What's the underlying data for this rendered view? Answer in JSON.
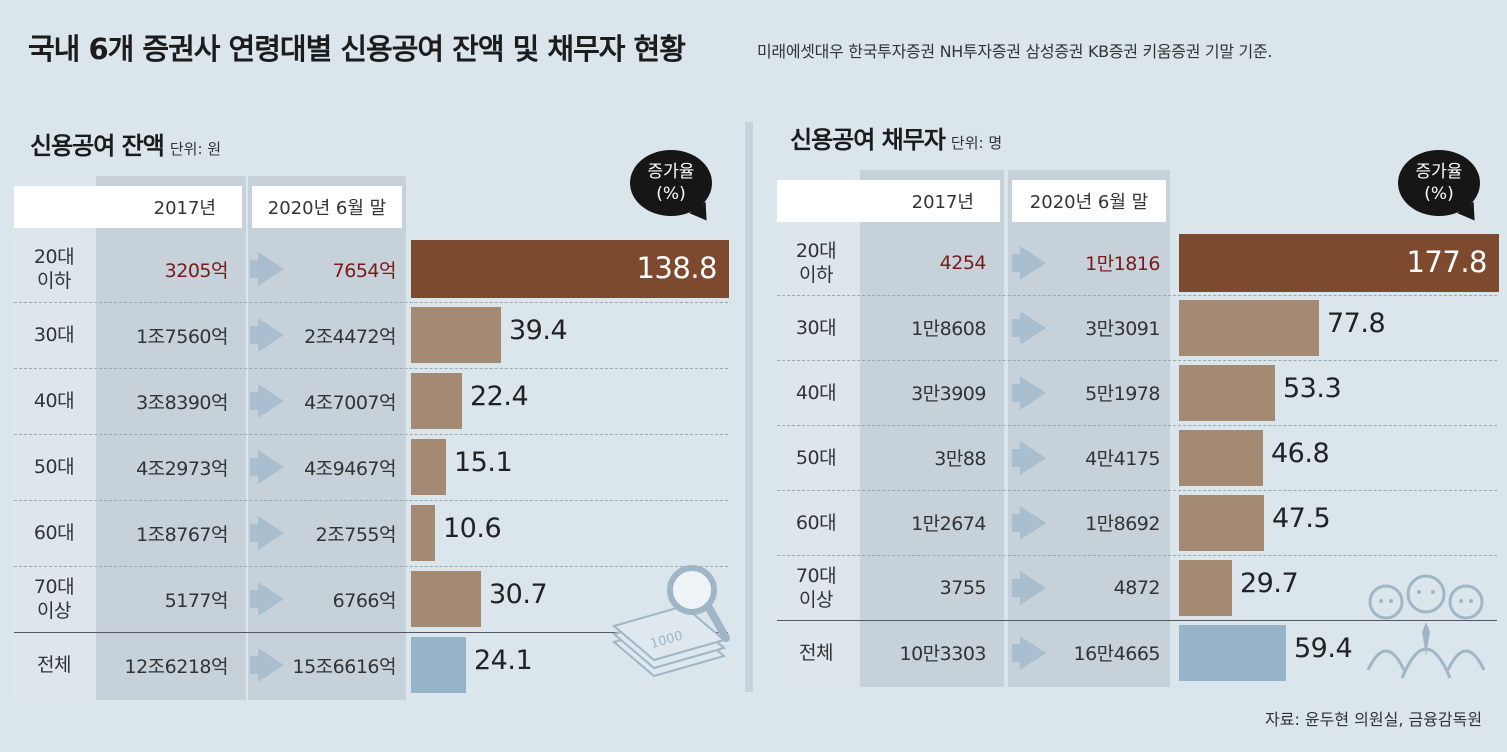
{
  "title": "국내 6개 증권사 연령대별 신용공여 잔액 및 채무자 현황",
  "subtitle": "미래에셋대우 한국투자증권 NH투자증권 삼성증권 KB증권 키움증권 기말 기준.",
  "source": "자료: 윤두현 의원실, 금융감독원",
  "colors": {
    "highlight": "#7e4a2f",
    "normal": "#a48a73",
    "total": "#97b3c8",
    "first_text": "#7a1a1a"
  },
  "chart_data": [
    {
      "type": "bar",
      "title": "신용공여 잔액",
      "unit": "단위: 원",
      "col_2017": "2017년",
      "col_2020": "2020년 6월 말",
      "rate_label_1": "증가율",
      "rate_label_2": "(%)",
      "categories": [
        "20대\n이하",
        "30대",
        "40대",
        "50대",
        "60대",
        "70대\n이상",
        "전체"
      ],
      "values_2017": [
        "3205억",
        "1조7560억",
        "3조8390억",
        "4조2973억",
        "1조8767억",
        "5177억",
        "12조6218억"
      ],
      "values_2020": [
        "7654억",
        "2조4472억",
        "4조7007억",
        "4조9467억",
        "2조755억",
        "6766억",
        "15조6616억"
      ],
      "growth_rate": [
        138.8,
        39.4,
        22.4,
        15.1,
        10.6,
        30.7,
        24.1
      ],
      "growth_rate_labels": [
        "138.8",
        "39.4",
        "22.4",
        "15.1",
        "10.6",
        "30.7",
        "24.1"
      ]
    },
    {
      "type": "bar",
      "title": "신용공여 채무자",
      "unit": "단위: 명",
      "col_2017": "2017년",
      "col_2020": "2020년 6월 말",
      "rate_label_1": "증가율",
      "rate_label_2": "(%)",
      "categories": [
        "20대\n이하",
        "30대",
        "40대",
        "50대",
        "60대",
        "70대\n이상",
        "전체"
      ],
      "values_2017": [
        "4254",
        "1만8608",
        "3만3909",
        "3만88",
        "1만2674",
        "3755",
        "10만3303"
      ],
      "values_2020": [
        "1만1816",
        "3만3091",
        "5만1978",
        "4만4175",
        "1만8692",
        "4872",
        "16만4665"
      ],
      "growth_rate": [
        177.8,
        77.8,
        53.3,
        46.8,
        47.5,
        29.7,
        59.4
      ],
      "growth_rate_labels": [
        "177.8",
        "77.8",
        "53.3",
        "46.8",
        "47.5",
        "29.7",
        "59.4"
      ]
    }
  ]
}
